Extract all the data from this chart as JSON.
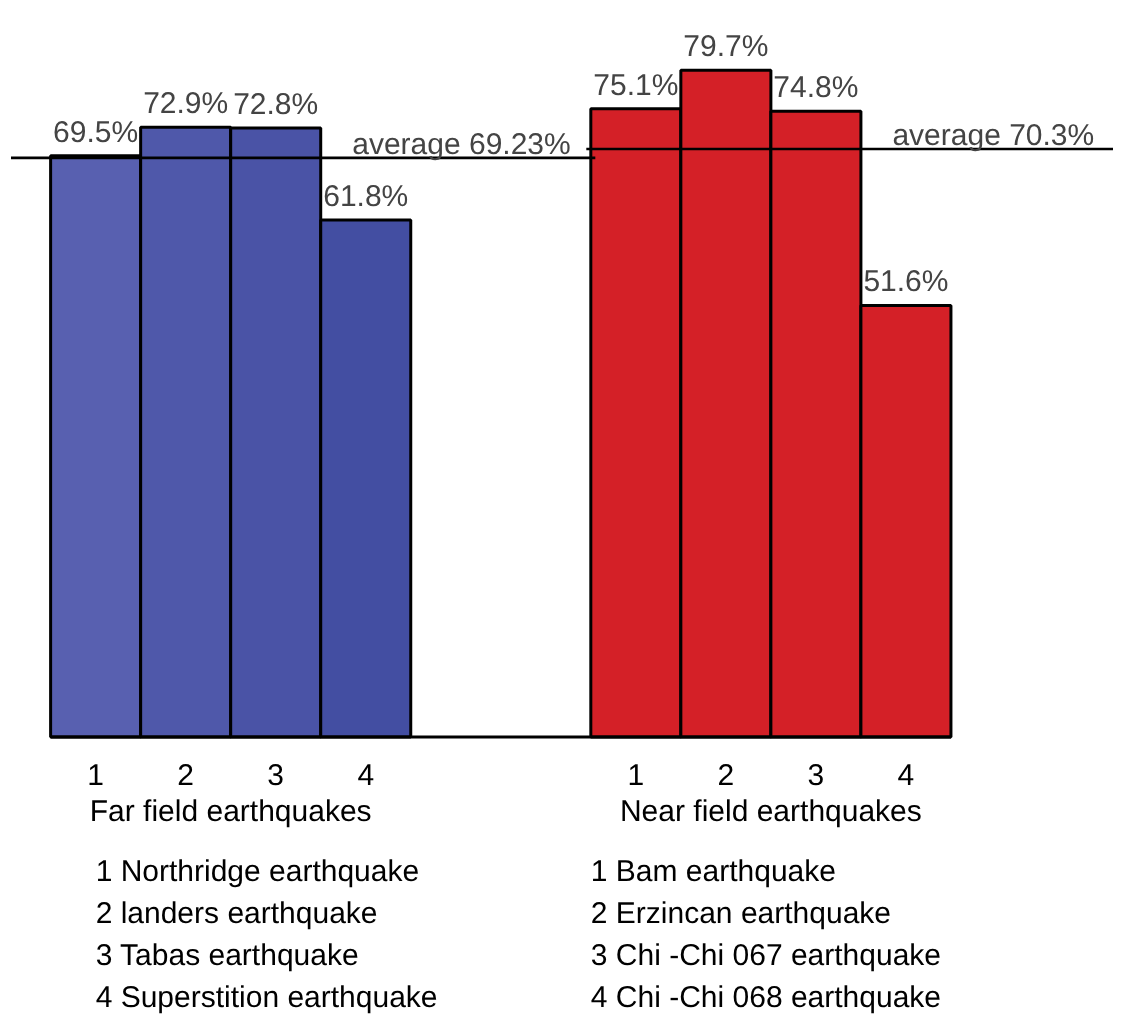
{
  "chart_data": {
    "type": "bar",
    "relative": false,
    "categories": [
      "1",
      "2",
      "3",
      "4",
      null,
      null,
      "1",
      "2",
      "3",
      "4"
    ],
    "values": [
      69.5,
      72.9,
      72.8,
      61.8,
      null,
      null,
      75.1,
      79.7,
      74.8,
      51.6
    ],
    "value_labels": [
      "69.5%",
      "72.9%",
      "72.8%",
      "61.8%",
      null,
      null,
      "75.1%",
      "79.7%",
      "74.8%",
      "51.6%"
    ],
    "colors": [
      "#5860b0",
      "#4f58aa",
      "#4a53a6",
      "#434ea2",
      null,
      null,
      "#d42027",
      "#d42027",
      "#d42027",
      "#d42027"
    ],
    "ref_lines": [
      {
        "axis": "y",
        "value": 69.23,
        "label": "average 69.23%",
        "color": "#000000"
      },
      {
        "axis": "y",
        "value": 70.3,
        "label": "average 70.3%",
        "color": "#000000"
      }
    ],
    "annotations": [
      "Far field earthquakes",
      "Near field earthquakes",
      "1 Northridge earthquake",
      "2 landers earthquake",
      "3 Tabas earthquake",
      "4 Superstition earthquake",
      "1 Bam earthquake",
      "2 Erzincan earthquake",
      "3 Chi -Chi 067 earthquake",
      "4 Chi -Chi 068 earthquake"
    ],
    "grid": false
  }
}
